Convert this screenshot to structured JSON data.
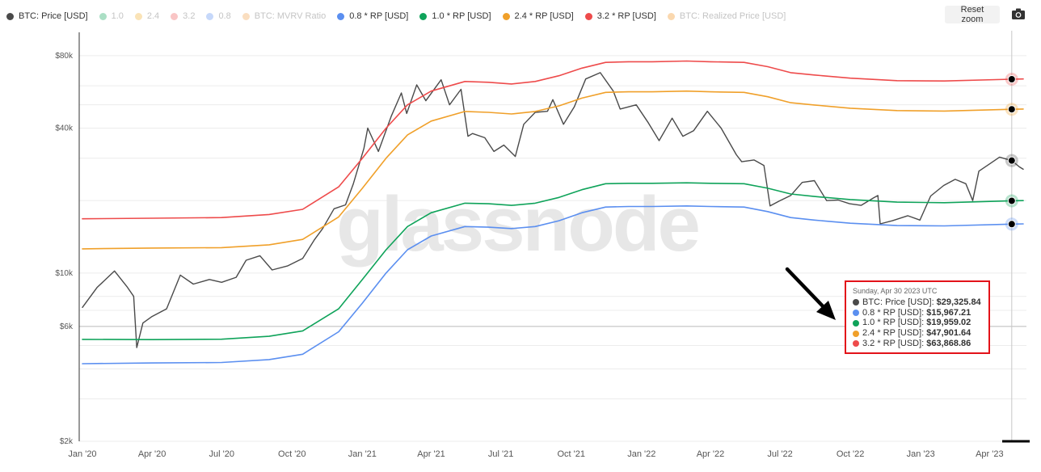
{
  "legend": [
    {
      "label": "BTC: Price [USD]",
      "color": "#4a4a4a",
      "active": true
    },
    {
      "label": "1.0",
      "color": "#0fa35a",
      "active": false
    },
    {
      "label": "2.4",
      "color": "#f2b030",
      "active": false
    },
    {
      "label": "3.2",
      "color": "#ee5a5a",
      "active": false
    },
    {
      "label": "0.8",
      "color": "#5b8ff0",
      "active": false
    },
    {
      "label": "BTC: MVRV Ratio",
      "color": "#f0a14a",
      "active": false
    },
    {
      "label": "0.8 * RP [USD]",
      "color": "#5b8ff0",
      "active": true
    },
    {
      "label": "1.0 * RP [USD]",
      "color": "#0fa35a",
      "active": true
    },
    {
      "label": "2.4 * RP [USD]",
      "color": "#f0a02a",
      "active": true
    },
    {
      "label": "3.2 * RP [USD]",
      "color": "#ee4b4b",
      "active": true
    },
    {
      "label": "BTC: Realized Price [USD]",
      "color": "#f0901a",
      "active": false
    }
  ],
  "toolbar": {
    "reset_zoom": "Reset zoom",
    "camera_icon": "camera-icon"
  },
  "watermark": "glassnode",
  "tooltip": {
    "date": "Sunday, Apr 30 2023 UTC",
    "rows": [
      {
        "label": "BTC: Price [USD]:",
        "value": "$29,325.84",
        "color": "#4a4a4a"
      },
      {
        "label": "0.8 * RP [USD]:",
        "value": "$15,967.21",
        "color": "#5b8ff0"
      },
      {
        "label": "1.0 * RP [USD]:",
        "value": "$19,959.02",
        "color": "#0fa35a"
      },
      {
        "label": "2.4 * RP [USD]:",
        "value": "$47,901.64",
        "color": "#f0a02a"
      },
      {
        "label": "3.2 * RP [USD]:",
        "value": "$63,868.86",
        "color": "#ee4b4b"
      }
    ]
  },
  "chart_data": {
    "type": "line",
    "yscale": "log",
    "ylim": [
      2000,
      100000
    ],
    "xlim": [
      "2020-01-01",
      "2023-05-15"
    ],
    "y_ticks": [
      {
        "value": 80000,
        "label": "$80k"
      },
      {
        "value": 40000,
        "label": "$40k"
      },
      {
        "value": 10000,
        "label": "$10k"
      },
      {
        "value": 6000,
        "label": "$6k"
      },
      {
        "value": 2000,
        "label": "$2k"
      }
    ],
    "x_ticks": [
      {
        "date": "2020-01-01",
        "label": "Jan '20"
      },
      {
        "date": "2020-04-01",
        "label": "Apr '20"
      },
      {
        "date": "2020-07-01",
        "label": "Jul '20"
      },
      {
        "date": "2020-10-01",
        "label": "Oct '20"
      },
      {
        "date": "2021-01-01",
        "label": "Jan '21"
      },
      {
        "date": "2021-04-01",
        "label": "Apr '21"
      },
      {
        "date": "2021-07-01",
        "label": "Jul '21"
      },
      {
        "date": "2021-10-01",
        "label": "Oct '21"
      },
      {
        "date": "2022-01-01",
        "label": "Jan '22"
      },
      {
        "date": "2022-04-01",
        "label": "Apr '22"
      },
      {
        "date": "2022-07-01",
        "label": "Jul '22"
      },
      {
        "date": "2022-10-01",
        "label": "Oct '22"
      },
      {
        "date": "2023-01-01",
        "label": "Jan '23"
      },
      {
        "date": "2023-04-01",
        "label": "Apr '23"
      }
    ],
    "crosshair_date": "2023-04-30",
    "series": [
      {
        "name": "BTC: Price [USD]",
        "color": "#4a4a4a",
        "width": 1.4,
        "dates": [
          "2020-01-01",
          "2020-01-20",
          "2020-02-12",
          "2020-02-28",
          "2020-03-08",
          "2020-03-12",
          "2020-03-20",
          "2020-04-01",
          "2020-04-20",
          "2020-05-08",
          "2020-05-25",
          "2020-06-15",
          "2020-07-01",
          "2020-07-20",
          "2020-08-02",
          "2020-08-20",
          "2020-09-05",
          "2020-09-25",
          "2020-10-15",
          "2020-10-30",
          "2020-11-10",
          "2020-11-25",
          "2020-12-10",
          "2020-12-20",
          "2021-01-03",
          "2021-01-08",
          "2021-01-22",
          "2021-02-08",
          "2021-02-21",
          "2021-02-28",
          "2021-03-13",
          "2021-03-25",
          "2021-04-14",
          "2021-04-25",
          "2021-05-10",
          "2021-05-19",
          "2021-05-25",
          "2021-06-10",
          "2021-06-22",
          "2021-07-05",
          "2021-07-20",
          "2021-07-31",
          "2021-08-15",
          "2021-08-31",
          "2021-09-07",
          "2021-09-21",
          "2021-10-05",
          "2021-10-20",
          "2021-11-08",
          "2021-11-25",
          "2021-12-04",
          "2021-12-25",
          "2022-01-10",
          "2022-01-24",
          "2022-02-10",
          "2022-02-24",
          "2022-03-10",
          "2022-03-28",
          "2022-04-15",
          "2022-05-05",
          "2022-05-12",
          "2022-05-28",
          "2022-06-10",
          "2022-06-18",
          "2022-06-30",
          "2022-07-15",
          "2022-07-30",
          "2022-08-15",
          "2022-08-31",
          "2022-09-15",
          "2022-09-30",
          "2022-10-15",
          "2022-10-31",
          "2022-11-06",
          "2022-11-09",
          "2022-11-25",
          "2022-12-15",
          "2022-12-31",
          "2023-01-14",
          "2023-01-31",
          "2023-02-15",
          "2023-03-01",
          "2023-03-10",
          "2023-03-18",
          "2023-04-01",
          "2023-04-14",
          "2023-04-30",
          "2023-05-10",
          "2023-05-15"
        ],
        "values": [
          7200,
          8700,
          10200,
          8800,
          8000,
          4900,
          6200,
          6600,
          7100,
          9800,
          9000,
          9400,
          9150,
          9600,
          11300,
          11800,
          10300,
          10700,
          11500,
          13700,
          15300,
          18500,
          19200,
          23400,
          33000,
          40000,
          32000,
          45000,
          56000,
          46000,
          60500,
          52000,
          63500,
          50000,
          58000,
          37000,
          38000,
          36500,
          32000,
          34000,
          30500,
          41500,
          46500,
          47000,
          52500,
          41500,
          49000,
          64000,
          68000,
          57000,
          48000,
          50000,
          42000,
          35500,
          44000,
          37000,
          39000,
          47000,
          40000,
          31000,
          29000,
          29500,
          28000,
          19000,
          19900,
          21000,
          23800,
          24200,
          20000,
          20100,
          19400,
          19100,
          20500,
          21000,
          16000,
          16500,
          17300,
          16600,
          20900,
          23100,
          24500,
          23500,
          20000,
          26500,
          28400,
          30300,
          29325,
          27600,
          27000
        ]
      },
      {
        "name": "3.2 * RP [USD]",
        "color": "#ee4b4b",
        "width": 1.6,
        "dates": [
          "2020-01-01",
          "2020-04-01",
          "2020-07-01",
          "2020-09-01",
          "2020-10-15",
          "2020-12-01",
          "2021-01-01",
          "2021-02-01",
          "2021-03-01",
          "2021-04-01",
          "2021-05-15",
          "2021-06-15",
          "2021-07-15",
          "2021-08-15",
          "2021-09-15",
          "2021-10-15",
          "2021-11-15",
          "2021-12-15",
          "2022-01-15",
          "2022-03-01",
          "2022-04-01",
          "2022-05-15",
          "2022-06-15",
          "2022-07-15",
          "2022-08-15",
          "2022-10-01",
          "2022-12-01",
          "2023-02-01",
          "2023-04-30",
          "2023-05-15"
        ],
        "values": [
          16800,
          16900,
          17000,
          17500,
          18400,
          22800,
          30000,
          40000,
          50000,
          57000,
          62500,
          62000,
          61000,
          62500,
          66000,
          71000,
          75000,
          75500,
          75500,
          76000,
          75500,
          75000,
          72000,
          68000,
          66500,
          64500,
          63000,
          62800,
          63868,
          64000
        ]
      },
      {
        "name": "2.4 * RP [USD]",
        "color": "#f0a02a",
        "width": 1.6,
        "dates": [
          "2020-01-01",
          "2020-04-01",
          "2020-07-01",
          "2020-09-01",
          "2020-10-15",
          "2020-12-01",
          "2021-01-01",
          "2021-02-01",
          "2021-03-01",
          "2021-04-01",
          "2021-05-15",
          "2021-06-15",
          "2021-07-15",
          "2021-08-15",
          "2021-09-15",
          "2021-10-15",
          "2021-11-15",
          "2021-12-15",
          "2022-01-15",
          "2022-03-01",
          "2022-04-01",
          "2022-05-15",
          "2022-06-15",
          "2022-07-15",
          "2022-08-15",
          "2022-10-01",
          "2022-12-01",
          "2023-02-01",
          "2023-04-30",
          "2023-05-15"
        ],
        "values": [
          12600,
          12700,
          12750,
          13100,
          13800,
          17100,
          22500,
          30000,
          37500,
          42800,
          46900,
          46500,
          45800,
          46900,
          49500,
          53300,
          56300,
          56600,
          56600,
          57000,
          56600,
          56300,
          54000,
          51000,
          49900,
          48400,
          47300,
          47100,
          47901,
          48000
        ]
      },
      {
        "name": "1.0 * RP [USD]",
        "color": "#0fa35a",
        "width": 1.6,
        "dates": [
          "2020-01-01",
          "2020-04-01",
          "2020-07-01",
          "2020-09-01",
          "2020-10-15",
          "2020-12-01",
          "2021-01-01",
          "2021-02-01",
          "2021-03-01",
          "2021-04-01",
          "2021-05-15",
          "2021-06-15",
          "2021-07-15",
          "2021-08-15",
          "2021-09-15",
          "2021-10-15",
          "2021-11-15",
          "2021-12-15",
          "2022-01-15",
          "2022-03-01",
          "2022-04-01",
          "2022-05-15",
          "2022-06-15",
          "2022-07-15",
          "2022-08-15",
          "2022-10-01",
          "2022-12-01",
          "2023-02-01",
          "2023-04-30",
          "2023-05-15"
        ],
        "values": [
          5300,
          5290,
          5310,
          5460,
          5750,
          7100,
          9400,
          12500,
          15600,
          17800,
          19500,
          19400,
          19100,
          19500,
          20600,
          22200,
          23500,
          23600,
          23600,
          23700,
          23600,
          23500,
          22500,
          21300,
          20800,
          20200,
          19700,
          19600,
          19959,
          20000
        ]
      },
      {
        "name": "0.8 * RP [USD]",
        "color": "#5b8ff0",
        "width": 1.6,
        "dates": [
          "2020-01-01",
          "2020-04-01",
          "2020-07-01",
          "2020-09-01",
          "2020-10-15",
          "2020-12-01",
          "2021-01-01",
          "2021-02-01",
          "2021-03-01",
          "2021-04-01",
          "2021-05-15",
          "2021-06-15",
          "2021-07-15",
          "2021-08-15",
          "2021-09-15",
          "2021-10-15",
          "2021-11-15",
          "2021-12-15",
          "2022-01-15",
          "2022-03-01",
          "2022-04-01",
          "2022-05-15",
          "2022-06-15",
          "2022-07-15",
          "2022-08-15",
          "2022-10-01",
          "2022-12-01",
          "2023-02-01",
          "2023-04-30",
          "2023-05-15"
        ],
        "values": [
          4200,
          4230,
          4250,
          4370,
          4600,
          5700,
          7500,
          10000,
          12500,
          14250,
          15600,
          15500,
          15300,
          15600,
          16500,
          17800,
          18800,
          18900,
          18900,
          19000,
          18900,
          18800,
          18000,
          17000,
          16600,
          16100,
          15750,
          15700,
          15967,
          16000
        ]
      }
    ]
  }
}
